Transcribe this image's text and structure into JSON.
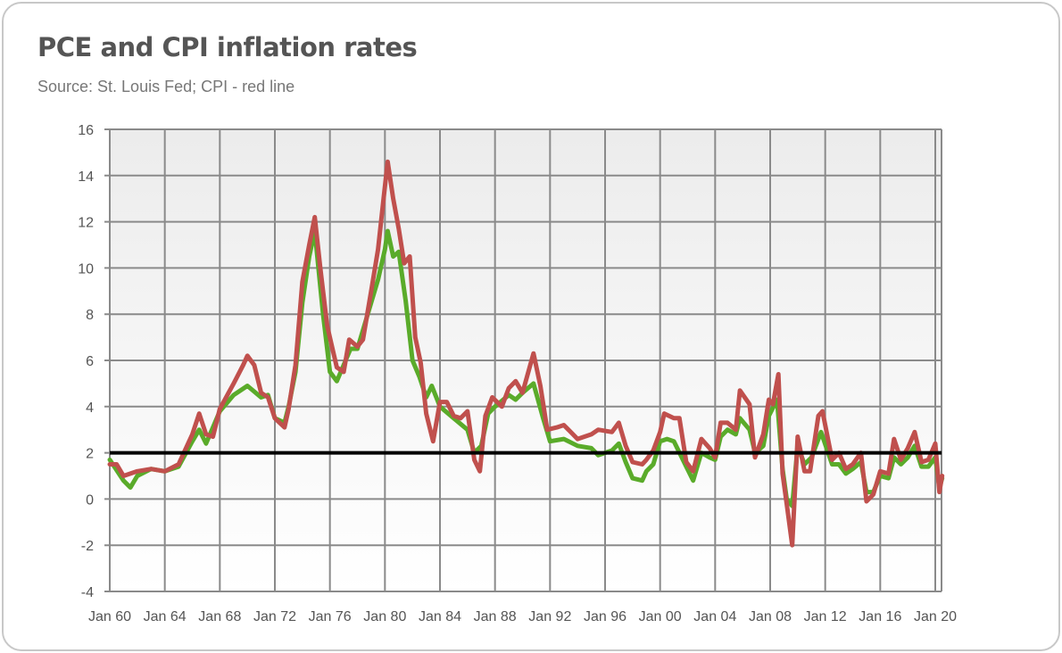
{
  "chart_data": {
    "type": "line",
    "title": "PCE and CPI inflation rates",
    "subtitle": "Source: St. Louis Fed; CPI - red line",
    "xlabel": "",
    "ylabel": "",
    "xlim": [
      1960,
      2020.5
    ],
    "ylim": [
      -4,
      16
    ],
    "grid": true,
    "legend": "none",
    "y_ticks": [
      "16",
      "14",
      "12",
      "10",
      "8",
      "6",
      "4",
      "2",
      "0",
      "-2",
      "-4"
    ],
    "x_ticks": [
      "Jan 60",
      "Jan 64",
      "Jan 68",
      "Jan 72",
      "Jan 76",
      "Jan 80",
      "Jan 84",
      "Jan 88",
      "Jan 92",
      "Jan 96",
      "Jan 00",
      "Jan 04",
      "Jan 08",
      "Jan 12",
      "Jan 16",
      "Jan 20"
    ],
    "reference_line": {
      "value": 2,
      "color": "#000000"
    },
    "series": [
      {
        "name": "PCE",
        "color": "#5aab2a",
        "points": [
          [
            1960,
            1.7
          ],
          [
            1961,
            0.8
          ],
          [
            1961.5,
            0.5
          ],
          [
            1962,
            1.0
          ],
          [
            1963,
            1.3
          ],
          [
            1964,
            1.2
          ],
          [
            1965,
            1.4
          ],
          [
            1966,
            2.5
          ],
          [
            1966.5,
            3.0
          ],
          [
            1967,
            2.4
          ],
          [
            1968,
            3.8
          ],
          [
            1969,
            4.5
          ],
          [
            1970,
            4.9
          ],
          [
            1971,
            4.4
          ],
          [
            1971.5,
            4.5
          ],
          [
            1972,
            3.5
          ],
          [
            1972.7,
            3.3
          ],
          [
            1973,
            4.0
          ],
          [
            1973.5,
            5.5
          ],
          [
            1974,
            8.5
          ],
          [
            1974.5,
            10.5
          ],
          [
            1974.9,
            11.6
          ],
          [
            1975.5,
            8.0
          ],
          [
            1976,
            5.5
          ],
          [
            1976.5,
            5.1
          ],
          [
            1977,
            5.8
          ],
          [
            1977.5,
            6.5
          ],
          [
            1978,
            6.5
          ],
          [
            1979,
            8.5
          ],
          [
            1979.5,
            9.5
          ],
          [
            1980,
            10.8
          ],
          [
            1980.2,
            11.6
          ],
          [
            1980.6,
            10.5
          ],
          [
            1981,
            10.7
          ],
          [
            1981.5,
            8.6
          ],
          [
            1982,
            6.0
          ],
          [
            1982.5,
            5.3
          ],
          [
            1983,
            4.4
          ],
          [
            1983.4,
            4.9
          ],
          [
            1984,
            4.0
          ],
          [
            1985,
            3.5
          ],
          [
            1986,
            3.0
          ],
          [
            1986.5,
            2.0
          ],
          [
            1987,
            2.3
          ],
          [
            1987.5,
            3.7
          ],
          [
            1988,
            4.0
          ],
          [
            1989,
            4.5
          ],
          [
            1989.5,
            4.3
          ],
          [
            1990,
            4.6
          ],
          [
            1990.8,
            5.0
          ],
          [
            1991.5,
            3.5
          ],
          [
            1992,
            2.5
          ],
          [
            1993,
            2.6
          ],
          [
            1994,
            2.3
          ],
          [
            1995,
            2.2
          ],
          [
            1995.5,
            1.9
          ],
          [
            1996.5,
            2.1
          ],
          [
            1997,
            2.4
          ],
          [
            1997.5,
            1.6
          ],
          [
            1998,
            0.9
          ],
          [
            1998.7,
            0.8
          ],
          [
            1999,
            1.2
          ],
          [
            1999.5,
            1.5
          ],
          [
            2000,
            2.5
          ],
          [
            2000.5,
            2.6
          ],
          [
            2001,
            2.5
          ],
          [
            2001.9,
            1.4
          ],
          [
            2002.4,
            0.8
          ],
          [
            2003,
            2.0
          ],
          [
            2003.6,
            1.8
          ],
          [
            2004,
            1.7
          ],
          [
            2004.4,
            2.7
          ],
          [
            2004.9,
            3.0
          ],
          [
            2005.5,
            2.8
          ],
          [
            2005.8,
            3.5
          ],
          [
            2006.5,
            3.0
          ],
          [
            2006.9,
            2.0
          ],
          [
            2007.5,
            2.3
          ],
          [
            2007.9,
            3.6
          ],
          [
            2008.5,
            4.3
          ],
          [
            2008.9,
            1.3
          ],
          [
            2009.2,
            0.0
          ],
          [
            2009.6,
            -0.3
          ],
          [
            2010,
            2.3
          ],
          [
            2010.5,
            1.5
          ],
          [
            2011,
            1.8
          ],
          [
            2011.7,
            2.9
          ],
          [
            2012.5,
            1.5
          ],
          [
            2013,
            1.5
          ],
          [
            2013.5,
            1.1
          ],
          [
            2014,
            1.3
          ],
          [
            2014.6,
            1.6
          ],
          [
            2015,
            0.3
          ],
          [
            2015.5,
            0.3
          ],
          [
            2016,
            1.0
          ],
          [
            2016.6,
            0.9
          ],
          [
            2017,
            1.8
          ],
          [
            2017.5,
            1.5
          ],
          [
            2018,
            1.8
          ],
          [
            2018.5,
            2.3
          ],
          [
            2019,
            1.4
          ],
          [
            2019.5,
            1.4
          ],
          [
            2020,
            1.8
          ],
          [
            2020.3,
            0.5
          ],
          [
            2020.5,
            0.9
          ]
        ]
      },
      {
        "name": "CPI",
        "color": "#c0504d",
        "points": [
          [
            1960,
            1.5
          ],
          [
            1960.5,
            1.5
          ],
          [
            1961,
            1.0
          ],
          [
            1962,
            1.2
          ],
          [
            1963,
            1.3
          ],
          [
            1964,
            1.2
          ],
          [
            1965,
            1.5
          ],
          [
            1966,
            2.8
          ],
          [
            1966.5,
            3.7
          ],
          [
            1967,
            2.8
          ],
          [
            1967.5,
            2.7
          ],
          [
            1968,
            3.9
          ],
          [
            1969,
            5.0
          ],
          [
            1969.7,
            5.8
          ],
          [
            1970,
            6.2
          ],
          [
            1970.5,
            5.8
          ],
          [
            1971,
            4.6
          ],
          [
            1971.5,
            4.4
          ],
          [
            1972,
            3.5
          ],
          [
            1972.7,
            3.1
          ],
          [
            1973,
            3.9
          ],
          [
            1973.5,
            5.8
          ],
          [
            1974,
            9.4
          ],
          [
            1974.5,
            11.0
          ],
          [
            1974.9,
            12.2
          ],
          [
            1975.3,
            10.0
          ],
          [
            1975.8,
            7.5
          ],
          [
            1976.5,
            5.7
          ],
          [
            1977,
            5.5
          ],
          [
            1977.4,
            6.9
          ],
          [
            1978,
            6.6
          ],
          [
            1978.4,
            6.9
          ],
          [
            1979,
            9.0
          ],
          [
            1979.5,
            10.8
          ],
          [
            1979.9,
            13.0
          ],
          [
            1980.2,
            14.6
          ],
          [
            1980.6,
            13.0
          ],
          [
            1981,
            11.7
          ],
          [
            1981.4,
            10.2
          ],
          [
            1981.8,
            10.5
          ],
          [
            1982.2,
            7.0
          ],
          [
            1982.6,
            5.9
          ],
          [
            1983,
            3.7
          ],
          [
            1983.5,
            2.5
          ],
          [
            1984,
            4.2
          ],
          [
            1984.5,
            4.2
          ],
          [
            1985,
            3.6
          ],
          [
            1985.5,
            3.5
          ],
          [
            1986,
            3.8
          ],
          [
            1986.5,
            1.7
          ],
          [
            1986.9,
            1.2
          ],
          [
            1987.3,
            3.6
          ],
          [
            1987.8,
            4.4
          ],
          [
            1988.5,
            4.0
          ],
          [
            1989,
            4.8
          ],
          [
            1989.5,
            5.1
          ],
          [
            1990,
            4.6
          ],
          [
            1990.8,
            6.3
          ],
          [
            1991.3,
            4.9
          ],
          [
            1991.8,
            3.0
          ],
          [
            1992.5,
            3.1
          ],
          [
            1993,
            3.2
          ],
          [
            1994,
            2.6
          ],
          [
            1995,
            2.8
          ],
          [
            1995.5,
            3.0
          ],
          [
            1996.5,
            2.9
          ],
          [
            1997,
            3.3
          ],
          [
            1997.5,
            2.3
          ],
          [
            1998,
            1.6
          ],
          [
            1998.7,
            1.5
          ],
          [
            1999,
            1.7
          ],
          [
            1999.5,
            2.1
          ],
          [
            2000,
            2.9
          ],
          [
            2000.3,
            3.7
          ],
          [
            2001,
            3.5
          ],
          [
            2001.4,
            3.5
          ],
          [
            2001.9,
            1.6
          ],
          [
            2002.4,
            1.2
          ],
          [
            2003,
            2.6
          ],
          [
            2003.6,
            2.2
          ],
          [
            2004,
            1.8
          ],
          [
            2004.4,
            3.3
          ],
          [
            2004.9,
            3.3
          ],
          [
            2005.5,
            3.0
          ],
          [
            2005.8,
            4.7
          ],
          [
            2006.5,
            4.1
          ],
          [
            2006.9,
            1.8
          ],
          [
            2007.5,
            2.8
          ],
          [
            2007.9,
            4.3
          ],
          [
            2008.2,
            4.1
          ],
          [
            2008.6,
            5.4
          ],
          [
            2008.9,
            1.1
          ],
          [
            2009.2,
            -0.2
          ],
          [
            2009.6,
            -2.0
          ],
          [
            2010,
            2.7
          ],
          [
            2010.5,
            1.2
          ],
          [
            2010.9,
            1.2
          ],
          [
            2011.5,
            3.6
          ],
          [
            2011.8,
            3.8
          ],
          [
            2012.5,
            1.7
          ],
          [
            2013,
            2.0
          ],
          [
            2013.5,
            1.3
          ],
          [
            2014,
            1.5
          ],
          [
            2014.6,
            2.0
          ],
          [
            2015,
            -0.1
          ],
          [
            2015.5,
            0.2
          ],
          [
            2016,
            1.2
          ],
          [
            2016.6,
            1.1
          ],
          [
            2017,
            2.6
          ],
          [
            2017.5,
            1.7
          ],
          [
            2018,
            2.2
          ],
          [
            2018.5,
            2.9
          ],
          [
            2019,
            1.6
          ],
          [
            2019.5,
            1.7
          ],
          [
            2020,
            2.4
          ],
          [
            2020.3,
            0.3
          ],
          [
            2020.5,
            1.0
          ]
        ]
      }
    ]
  }
}
